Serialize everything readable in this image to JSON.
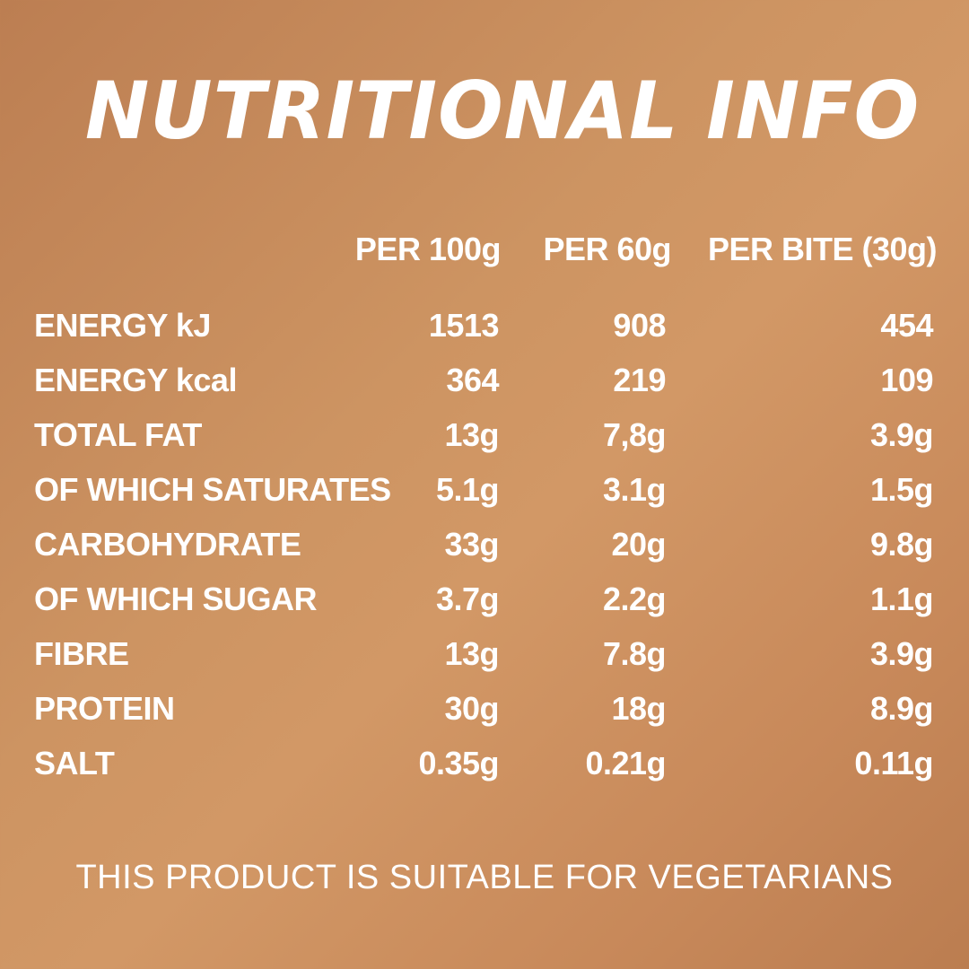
{
  "title": "NUTRITIONAL INFO",
  "columns": [
    "PER 100g",
    "PER 60g",
    "PER BITE (30g)"
  ],
  "rows": [
    {
      "label": "ENERGY kJ",
      "per_100g": "1513",
      "per_60g": "908",
      "per_bite": "454"
    },
    {
      "label": "ENERGY kcal",
      "per_100g": "364",
      "per_60g": "219",
      "per_bite": "109"
    },
    {
      "label": "TOTAL FAT",
      "per_100g": "13g",
      "per_60g": "7,8g",
      "per_bite": "3.9g"
    },
    {
      "label": "OF WHICH SATURATES",
      "per_100g": "5.1g",
      "per_60g": "3.1g",
      "per_bite": "1.5g"
    },
    {
      "label": "CARBOHYDRATE",
      "per_100g": "33g",
      "per_60g": "20g",
      "per_bite": "9.8g"
    },
    {
      "label": "OF WHICH SUGAR",
      "per_100g": "3.7g",
      "per_60g": "2.2g",
      "per_bite": "1.1g"
    },
    {
      "label": "FIBRE",
      "per_100g": "13g",
      "per_60g": "7.8g",
      "per_bite": "3.9g"
    },
    {
      "label": "PROTEIN",
      "per_100g": "30g",
      "per_60g": "18g",
      "per_bite": "8.9g"
    },
    {
      "label": "SALT",
      "per_100g": "0.35g",
      "per_60g": "0.21g",
      "per_bite": "0.11g"
    }
  ],
  "footer": "THIS PRODUCT IS SUITABLE FOR VEGETARIANS",
  "colors": {
    "background": "#c98f5e",
    "text": "#ffffff"
  }
}
